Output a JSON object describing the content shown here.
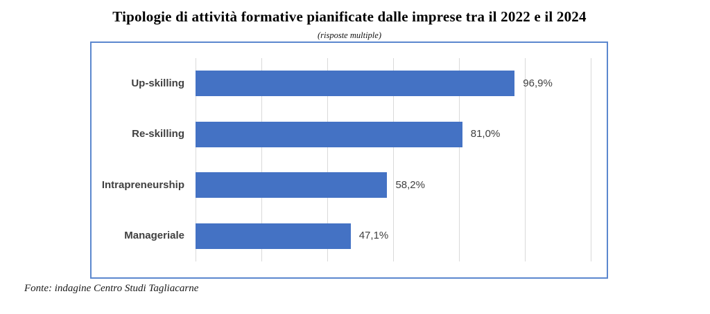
{
  "title": "Tipologie di attività formative pianificate dalle imprese tra il 2022 e il 2024",
  "subtitle": "(risposte multiple)",
  "source_note": "Fonte: indagine Centro Studi Tagliacarne",
  "colors": {
    "bar": "#4472C4",
    "frame_border": "#5B87CE",
    "gridline": "#D9D9D9",
    "label_text": "#404040",
    "title_text": "#000000"
  },
  "chart_data": {
    "type": "bar",
    "orientation": "horizontal",
    "title": "Tipologie di attività formative pianificate dalle imprese tra il 2022 e il 2024",
    "subtitle": "(risposte multiple)",
    "categories": [
      "Up-skilling",
      "Re-skilling",
      "Intrapreneurship",
      "Manageriale"
    ],
    "values": [
      96.9,
      81.0,
      58.2,
      47.1
    ],
    "value_labels": [
      "96,9%",
      "81,0%",
      "58,2%",
      "47,1%"
    ],
    "xlabel": "",
    "ylabel": "",
    "xlim": [
      0,
      120
    ],
    "gridline_step": 20,
    "grid": true,
    "x_tick_labels_shown": false,
    "legend": false,
    "source": "Fonte: indagine Centro Studi Tagliacarne"
  }
}
